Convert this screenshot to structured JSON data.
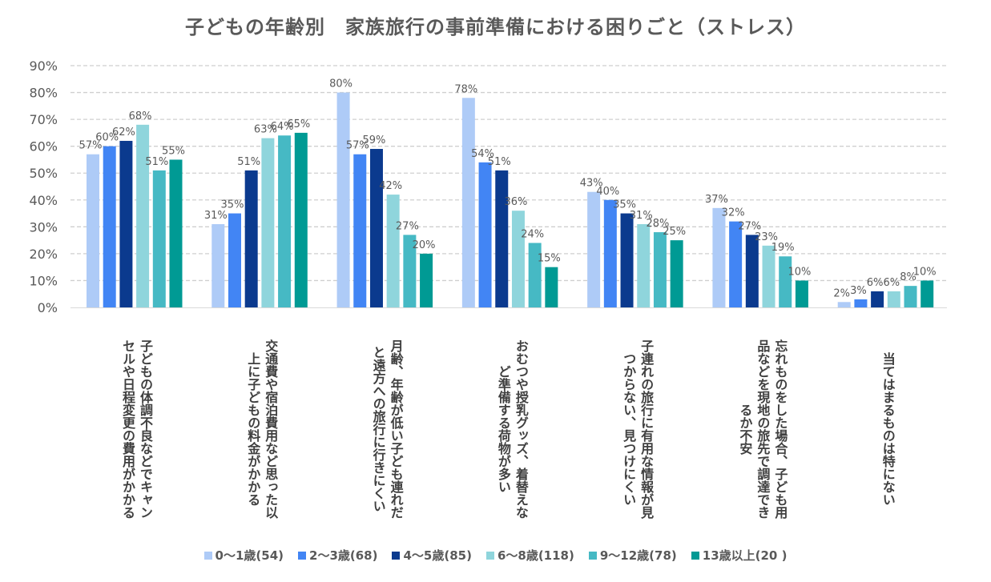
{
  "chart_data": {
    "type": "bar",
    "title": "子どもの年齢別　家族旅行の事前準備における困りごと（ストレス）",
    "ylim": [
      0,
      90
    ],
    "yticks": [
      "0%",
      "10%",
      "20%",
      "30%",
      "40%",
      "50%",
      "60%",
      "70%",
      "80%",
      "90%"
    ],
    "grid": true,
    "legend_position": "bottom",
    "categories": [
      [
        "子どもの体調不良などでキャン",
        "セルや日程変更の費用がかかる"
      ],
      [
        "交通費や宿泊費用など思った以",
        "上に子どもの料金がかかる"
      ],
      [
        "月齢、年齢が低い子ども連れだ",
        "と遠方への旅行に行きにくい"
      ],
      [
        "おむつや授乳グッズ、着替えな",
        "ど準備する荷物が多い"
      ],
      [
        "子連れの旅行に有用な情報が見",
        "つからない、見つけにくい"
      ],
      [
        "忘れものをした場合、子ども用",
        "品などを現地の旅先で調達でき",
        "るか不安"
      ],
      [
        "当てはまるものは特にない"
      ]
    ],
    "series": [
      {
        "name": "0〜1歳(54)",
        "color": "#aecbf7",
        "values": [
          57,
          31,
          80,
          78,
          43,
          37,
          2
        ]
      },
      {
        "name": "2〜3歳(68)",
        "color": "#4285f4",
        "values": [
          60,
          35,
          57,
          54,
          40,
          32,
          3
        ]
      },
      {
        "name": "4〜5歳(85)",
        "color": "#0b3a8e",
        "values": [
          62,
          51,
          59,
          51,
          35,
          27,
          6
        ]
      },
      {
        "name": "6〜8歳(118)",
        "color": "#8fd5dc",
        "values": [
          68,
          63,
          42,
          36,
          31,
          23,
          6
        ]
      },
      {
        "name": "9〜12歳(78)",
        "color": "#46b9c4",
        "values": [
          51,
          64,
          27,
          24,
          28,
          19,
          8
        ]
      },
      {
        "name": "13歳以上(20 )",
        "color": "#009a94",
        "values": [
          55,
          65,
          20,
          15,
          25,
          10,
          10
        ]
      }
    ]
  }
}
